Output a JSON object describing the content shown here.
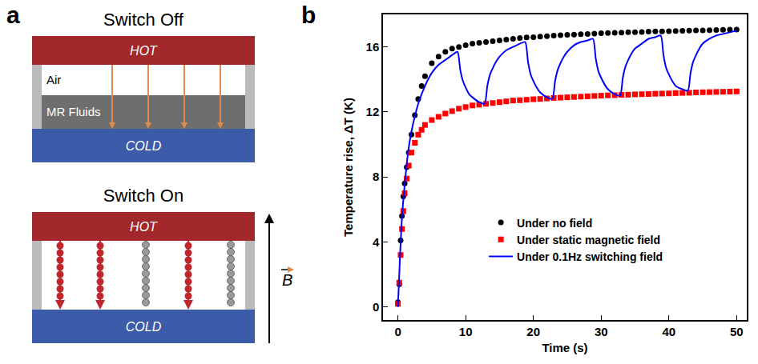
{
  "panel_labels": [
    "a",
    "b"
  ],
  "diagram": {
    "switch_off": {
      "title": "Switch Off",
      "hot": "HOT",
      "cold": "COLD",
      "layers": [
        "Air",
        "MR Fluids"
      ]
    },
    "switch_on": {
      "title": "Switch On",
      "hot": "HOT",
      "cold": "COLD",
      "field": "B"
    }
  },
  "chart_data": {
    "type": "line",
    "x_label": "Time (s)",
    "y_label": "Temperature rise, ΔT (K)",
    "xlim": [
      -2.2,
      51.5
    ],
    "xticks": [
      0,
      10,
      20,
      30,
      40,
      50
    ],
    "ylim": [
      -0.8,
      18
    ],
    "yticks": [
      0,
      4,
      8,
      12,
      16
    ],
    "grid": false,
    "legend": "lower right",
    "series": [
      {
        "name": "Under no field",
        "type": "scatter",
        "marker": "circle",
        "color": "#000000",
        "x": [
          0,
          0.2,
          0.4,
          0.6,
          0.8,
          1,
          1.3,
          1.6,
          2,
          2.5,
          3,
          3.5,
          4,
          5,
          6,
          7,
          8,
          9,
          10,
          11,
          12,
          13,
          14,
          15,
          16,
          17,
          18,
          19,
          20,
          21,
          22,
          23,
          24,
          25,
          26,
          27,
          28,
          29,
          30,
          31,
          32,
          33,
          34,
          35,
          36,
          37,
          38,
          39,
          40,
          41,
          42,
          43,
          44,
          45,
          46,
          47,
          48,
          49,
          50
        ],
        "values": [
          0.3,
          1.4,
          4.1,
          5.6,
          6.8,
          7.6,
          8.6,
          9.5,
          10.6,
          11.8,
          12.8,
          13.6,
          14.2,
          15.0,
          15.4,
          15.7,
          15.9,
          16.0,
          16.1,
          16.2,
          16.25,
          16.3,
          16.35,
          16.4,
          16.45,
          16.5,
          16.55,
          16.58,
          16.6,
          16.63,
          16.66,
          16.69,
          16.72,
          16.74,
          16.76,
          16.78,
          16.8,
          16.82,
          16.84,
          16.86,
          16.87,
          16.88,
          16.9,
          16.91,
          16.92,
          16.94,
          16.95,
          16.96,
          16.97,
          16.98,
          16.99,
          17.0,
          17.01,
          17.02,
          17.03,
          17.04,
          17.05,
          17.06,
          17.07
        ]
      },
      {
        "name": "Under static magnetic field",
        "type": "scatter",
        "marker": "square",
        "color": "#ff0000",
        "x": [
          0,
          0.2,
          0.4,
          0.6,
          0.8,
          1,
          1.3,
          1.6,
          2,
          2.5,
          3,
          3.5,
          4,
          5,
          6,
          7,
          8,
          9,
          10,
          11,
          12,
          13,
          14,
          15,
          16,
          17,
          18,
          19,
          20,
          21,
          22,
          23,
          24,
          25,
          26,
          27,
          28,
          29,
          30,
          31,
          32,
          33,
          34,
          35,
          36,
          37,
          38,
          39,
          40,
          41,
          42,
          43,
          44,
          45,
          46,
          47,
          48,
          49,
          50
        ],
        "values": [
          0.2,
          1.5,
          3.2,
          4.8,
          5.9,
          7.0,
          7.9,
          8.7,
          9.5,
          10.1,
          10.6,
          10.9,
          11.2,
          11.5,
          11.7,
          11.9,
          12.05,
          12.2,
          12.3,
          12.4,
          12.45,
          12.5,
          12.55,
          12.6,
          12.65,
          12.7,
          12.72,
          12.75,
          12.78,
          12.8,
          12.83,
          12.86,
          12.88,
          12.9,
          12.92,
          12.94,
          12.96,
          12.98,
          13.0,
          13.02,
          13.03,
          13.05,
          13.06,
          13.08,
          13.09,
          13.1,
          13.12,
          13.13,
          13.14,
          13.16,
          13.17,
          13.18,
          13.2,
          13.21,
          13.22,
          13.23,
          13.24,
          13.25,
          13.26
        ]
      },
      {
        "name": "Under 0.1Hz switching field",
        "type": "line",
        "line_style": "solid",
        "color": "#0000ff",
        "x": [
          0,
          0.3,
          0.6,
          1,
          1.5,
          2,
          3,
          4,
          5,
          6,
          7,
          8,
          8.8,
          9.2,
          9.6,
          10,
          10.5,
          11,
          12,
          12.8,
          13.2,
          13.6,
          14,
          14.5,
          15,
          16,
          17,
          18,
          18.8,
          19.2,
          19.6,
          20,
          20.5,
          21,
          22,
          22.8,
          23.2,
          23.6,
          24,
          24.5,
          25,
          26,
          27,
          28,
          28.8,
          29.2,
          29.6,
          30,
          30.5,
          31,
          32,
          32.8,
          33.2,
          33.6,
          34,
          34.5,
          35,
          36,
          37,
          38,
          38.8,
          39.2,
          39.6,
          40,
          40.5,
          41,
          42,
          42.8,
          43.2,
          43.6,
          44,
          44.5,
          45,
          46,
          47,
          48,
          49,
          50
        ],
        "values": [
          0,
          3.0,
          5.5,
          7.5,
          9.5,
          10.8,
          12.5,
          13.6,
          14.4,
          14.9,
          15.2,
          15.5,
          15.7,
          14.6,
          13.9,
          13.5,
          13.1,
          12.9,
          12.6,
          12.5,
          13.6,
          14.3,
          14.7,
          15.1,
          15.4,
          15.8,
          16.0,
          16.2,
          16.3,
          15.1,
          14.3,
          13.9,
          13.5,
          13.2,
          12.9,
          12.8,
          13.9,
          14.6,
          15.0,
          15.4,
          15.7,
          16.1,
          16.3,
          16.4,
          16.5,
          15.3,
          14.5,
          14.1,
          13.7,
          13.4,
          13.1,
          13.0,
          14.1,
          14.8,
          15.2,
          15.6,
          15.9,
          16.2,
          16.5,
          16.6,
          16.7,
          15.5,
          14.7,
          14.3,
          13.9,
          13.6,
          13.4,
          13.3,
          14.4,
          15.1,
          15.5,
          15.9,
          16.2,
          16.5,
          16.7,
          16.8,
          16.9,
          17.0
        ]
      }
    ]
  }
}
